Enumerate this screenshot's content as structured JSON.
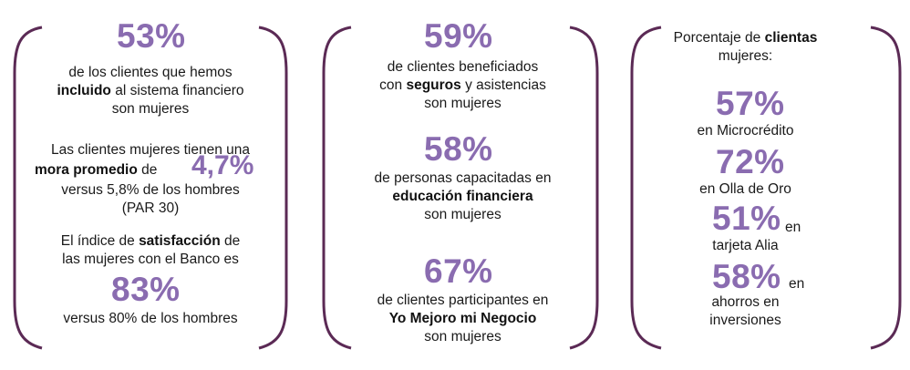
{
  "colors": {
    "accent": "#8a6cb0",
    "bracket": "#5b2a55",
    "text": "#1a1a1a"
  },
  "panel1": {
    "stat1": "53%",
    "stat1_l1": "de los clientes que hemos",
    "stat1_l2_bold": "incluido",
    "stat1_l2_rest": " al sistema financiero",
    "stat1_l3": "son mujeres",
    "mora_l1": "Las clientes mujeres tienen una",
    "mora_l2_bold": "mora promedio",
    "mora_l2_rest": "  de",
    "mora_value": "4,7%",
    "mora_l3": "versus 5,8% de los hombres",
    "mora_l4": "(PAR 30)",
    "sat_l1_pre": "El índice de ",
    "sat_l1_bold": "satisfacción",
    "sat_l1_post": "  de",
    "sat_l2": "las mujeres con el Banco es",
    "sat_value": "83%",
    "sat_l3": "versus 80% de los hombres"
  },
  "panel2": {
    "stat1": "59%",
    "stat1_l1": "de clientes beneficiados",
    "stat1_l2_pre": "con ",
    "stat1_l2_bold": "seguros",
    "stat1_l2_post": " y asistencias",
    "stat1_l3": "son mujeres",
    "stat2": "58%",
    "stat2_l1": "de personas capacitadas en",
    "stat2_l2_bold": "educación financiera",
    "stat2_l3": "son mujeres",
    "stat3": "67%",
    "stat3_l1": "de clientes participantes en",
    "stat3_l2_bold": "Yo Mejoro mi Negocio",
    "stat3_l3": "son mujeres"
  },
  "panel3": {
    "head_l1_pre": "Porcentaje de ",
    "head_l1_bold": "clientas",
    "head_l2": "mujeres:",
    "s1": "57%",
    "s1_label": "en Microcrédito",
    "s2": "72%",
    "s2_label": "en Olla de Oro",
    "s3": "51%",
    "s3_suffix": "en",
    "s3_label": "tarjeta Alia",
    "s4": "58%",
    "s4_suffix": "en",
    "s4_label_l1": "ahorros en",
    "s4_label_l2": "inversiones"
  }
}
